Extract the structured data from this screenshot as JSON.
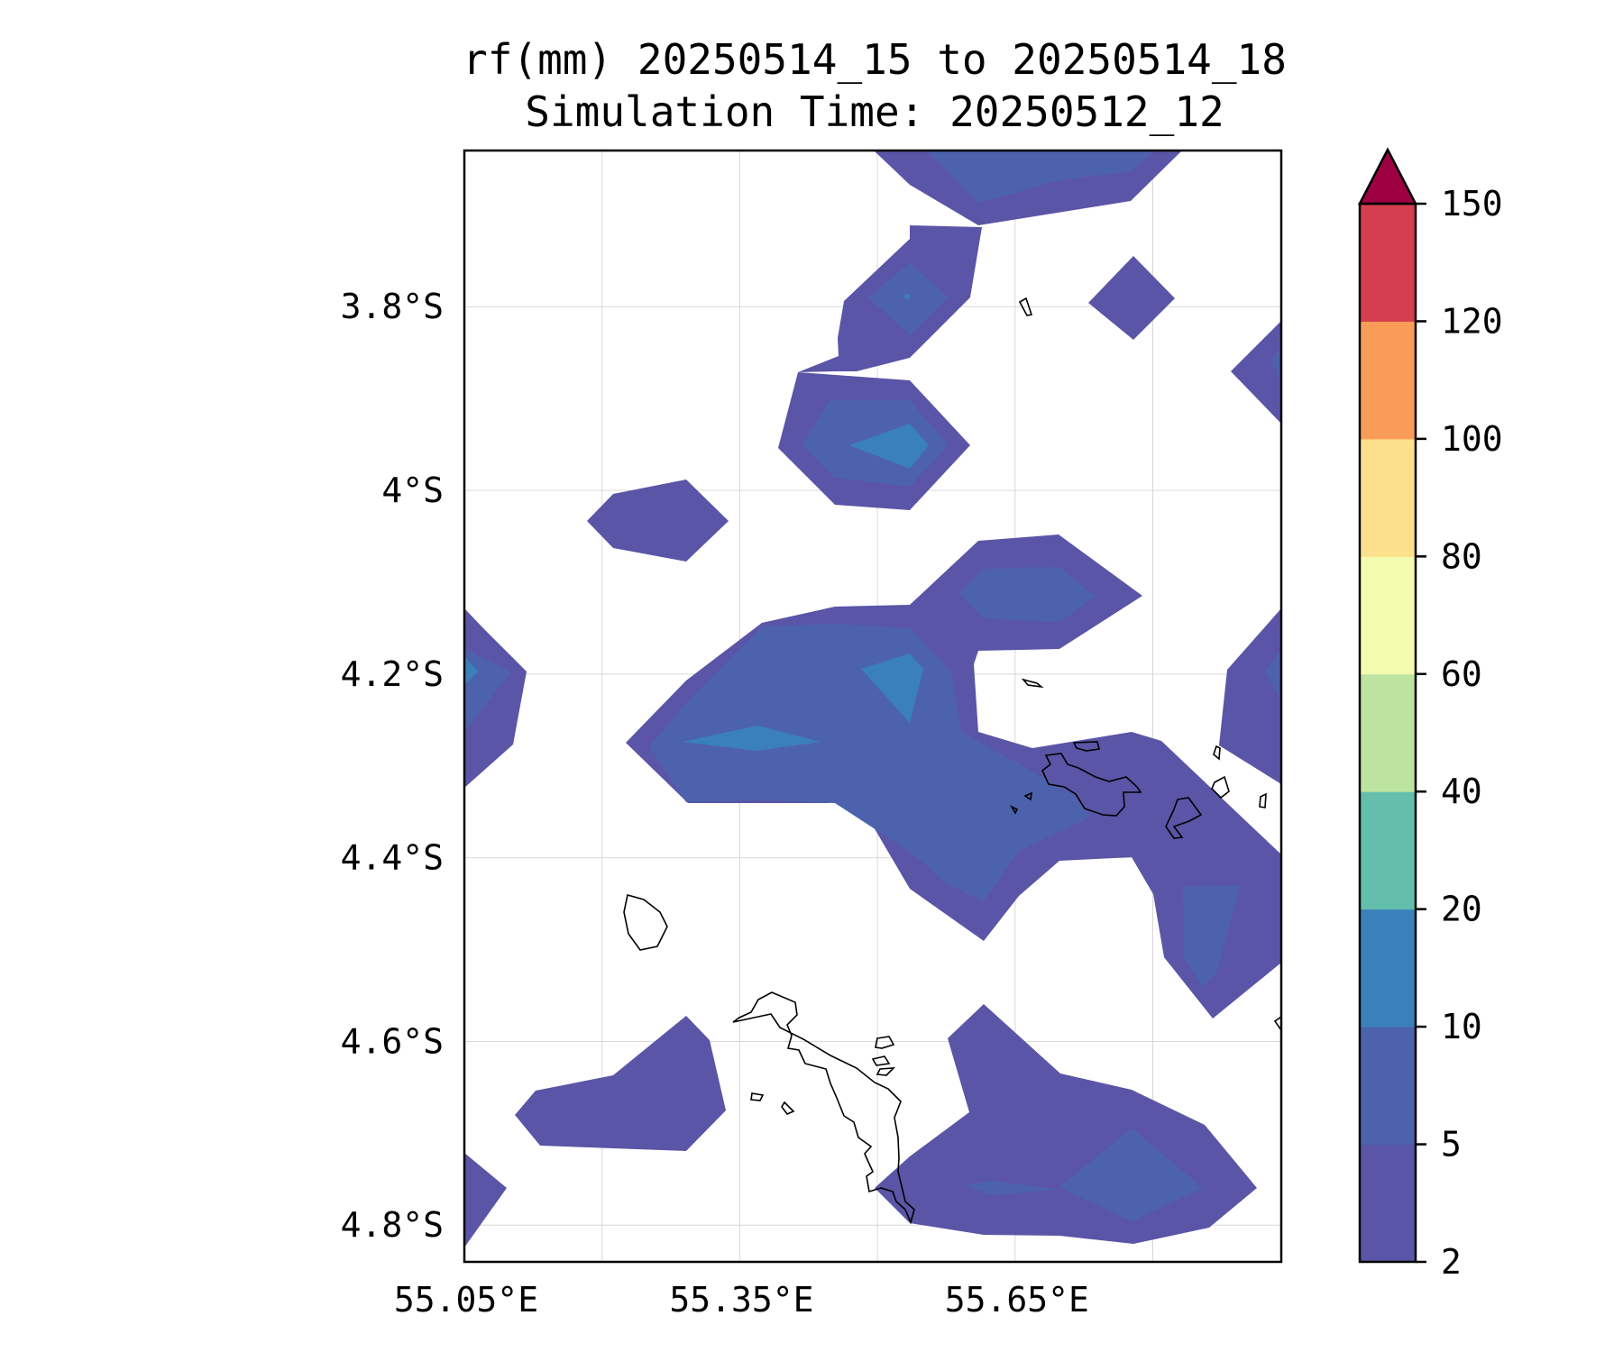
{
  "title": {
    "line1": "rf(mm) 20250514_15 to 20250514_18",
    "line2": "Simulation Time: 20250512_12"
  },
  "map": {
    "lon_range": [
      55.05,
      55.94
    ],
    "lat_range": [
      -4.84,
      -3.63
    ],
    "x_ticks": [
      {
        "value": 55.05,
        "label": "55.05°E"
      },
      {
        "value": 55.35,
        "label": "55.35°E"
      },
      {
        "value": 55.65,
        "label": "55.65°E"
      }
    ],
    "x_gridlines": [
      55.05,
      55.2,
      55.35,
      55.5,
      55.65,
      55.8
    ],
    "y_ticks": [
      {
        "value": -3.8,
        "label": "3.8°S"
      },
      {
        "value": -4.0,
        "label": "4°S"
      },
      {
        "value": -4.2,
        "label": "4.2°S"
      },
      {
        "value": -4.4,
        "label": "4.4°S"
      },
      {
        "value": -4.6,
        "label": "4.6°S"
      },
      {
        "value": -4.8,
        "label": "4.8°S"
      }
    ],
    "grid": true
  },
  "colorbar": {
    "levels": [
      2,
      5,
      10,
      20,
      40,
      60,
      80,
      100,
      120,
      150
    ],
    "labels": [
      "2",
      "5",
      "10",
      "20",
      "40",
      "60",
      "80",
      "100",
      "120",
      "150"
    ],
    "colors": [
      "#5a55a6",
      "#4c62ad",
      "#3a80bc",
      "#63bfab",
      "#bde3a1",
      "#f3fbae",
      "#fde08c",
      "#f89c58",
      "#d53e4f",
      "#9e0142"
    ],
    "extend": "max"
  }
}
